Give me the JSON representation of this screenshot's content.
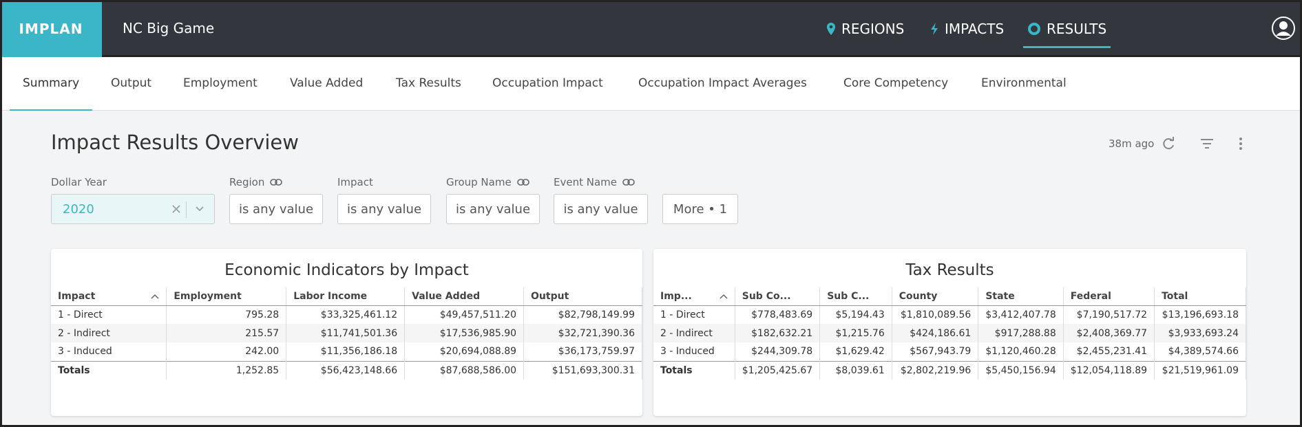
{
  "header": {
    "logo": "IMPLAN",
    "project": "NC Big Game",
    "nav": [
      "REGIONS",
      "IMPACTS",
      "RESULTS"
    ],
    "active_nav": 2
  },
  "tabs": {
    "items": [
      "Summary",
      "Output",
      "Employment",
      "Value Added",
      "Tax Results",
      "Occupation Impact",
      "Occupation Impact Averages",
      "Core Competency",
      "Environmental"
    ],
    "active": 0
  },
  "page": {
    "title": "Impact Results Overview",
    "updated": "38m ago",
    "filters": [
      {
        "label": "Dollar Year",
        "value": "2020",
        "link": false,
        "selected": true
      },
      {
        "label": "Region",
        "value": "is any value",
        "link": true,
        "selected": false
      },
      {
        "label": "Impact",
        "value": "is any value",
        "link": false,
        "selected": false
      },
      {
        "label": "Group Name",
        "value": "is any value",
        "link": true,
        "selected": false
      },
      {
        "label": "Event Name",
        "value": "is any value",
        "link": true,
        "selected": false
      }
    ],
    "more": "More • 1"
  },
  "tables": [
    {
      "title": "Economic Indicators by Impact",
      "columns": [
        "Impact",
        "Employment",
        "Labor Income",
        "Value Added",
        "Output"
      ],
      "rows": [
        [
          "1 - Direct",
          "795.28",
          "$33,325,461.12",
          "$49,457,511.20",
          "$82,798,149.99"
        ],
        [
          "2 - Indirect",
          "215.57",
          "$11,741,501.36",
          "$17,536,985.90",
          "$32,721,390.36"
        ],
        [
          "3 - Induced",
          "242.00",
          "$11,356,186.18",
          "$20,694,088.89",
          "$36,173,759.97"
        ]
      ],
      "totals": [
        "Totals",
        "1,252.85",
        "$56,423,148.66",
        "$87,688,586.00",
        "$151,693,300.31"
      ]
    },
    {
      "title": "Tax Results",
      "columns": [
        "Imp...",
        "Sub Co...",
        "Sub C...",
        "County",
        "State",
        "Federal",
        "Total"
      ],
      "rows": [
        [
          "1 - Direct",
          "$778,483.69",
          "$5,194.43",
          "$1,810,089.56",
          "$3,412,407.78",
          "$7,190,517.72",
          "$13,196,693.18"
        ],
        [
          "2 - Indirect",
          "$182,632.21",
          "$1,215.76",
          "$424,186.61",
          "$917,288.88",
          "$2,408,369.77",
          "$3,933,693.24"
        ],
        [
          "3 - Induced",
          "$244,309.78",
          "$1,629.42",
          "$567,943.79",
          "$1,120,460.28",
          "$2,455,231.41",
          "$4,389,574.66"
        ]
      ],
      "totals": [
        "Totals",
        "$1,205,425.67",
        "$8,039.61",
        "$2,802,219.96",
        "$5,450,156.94",
        "$12,054,118.89",
        "$21,519,961.09"
      ]
    }
  ]
}
